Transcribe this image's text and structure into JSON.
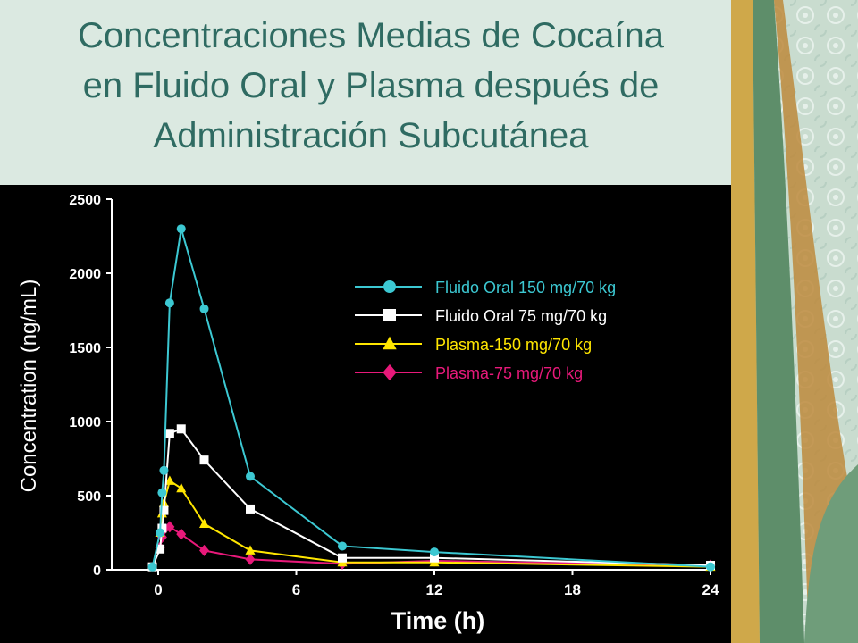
{
  "title_lines": [
    "Concentraciones Medias de Cocaína",
    "en Fluido Oral y Plasma después de",
    "Administración Subcutánea"
  ],
  "chart_data": {
    "type": "line",
    "xlabel": "Time (h)",
    "ylabel": "Concentration (ng/mL)",
    "xlim": [
      -0.5,
      24
    ],
    "ylim": [
      0,
      2500
    ],
    "xticks": [
      0,
      6,
      12,
      18,
      24
    ],
    "yticks": [
      0,
      500,
      1000,
      1500,
      2000,
      2500
    ],
    "grid": false,
    "legend_position": "upper-right",
    "series": [
      {
        "name": "Fluido Oral 150 mg/70 kg",
        "color": "#3cc8d2",
        "marker": "circle",
        "x": [
          -0.25,
          0.08,
          0.17,
          0.25,
          0.5,
          1,
          2,
          4,
          8,
          12,
          24
        ],
        "y": [
          20,
          250,
          520,
          670,
          1800,
          2300,
          1760,
          630,
          160,
          120,
          20
        ]
      },
      {
        "name": "Fluido Oral 75 mg/70 kg",
        "color": "#ffffff",
        "marker": "square",
        "x": [
          -0.25,
          0.08,
          0.17,
          0.25,
          0.5,
          1,
          2,
          4,
          8,
          12,
          24
        ],
        "y": [
          20,
          140,
          280,
          400,
          920,
          950,
          740,
          410,
          80,
          80,
          30
        ]
      },
      {
        "name": "Plasma-150 mg/70 kg",
        "color": "#ffe600",
        "marker": "triangle",
        "x": [
          0.08,
          0.17,
          0.25,
          0.5,
          1,
          2,
          4,
          8,
          12,
          24
        ],
        "y": [
          250,
          380,
          450,
          600,
          550,
          310,
          130,
          50,
          50,
          20
        ]
      },
      {
        "name": "Plasma-75 mg/70 kg",
        "color": "#e8197a",
        "marker": "diamond",
        "x": [
          0.08,
          0.17,
          0.25,
          0.5,
          1,
          2,
          4,
          8,
          12,
          24
        ],
        "y": [
          150,
          220,
          270,
          290,
          240,
          130,
          70,
          40,
          60,
          30
        ]
      }
    ]
  }
}
